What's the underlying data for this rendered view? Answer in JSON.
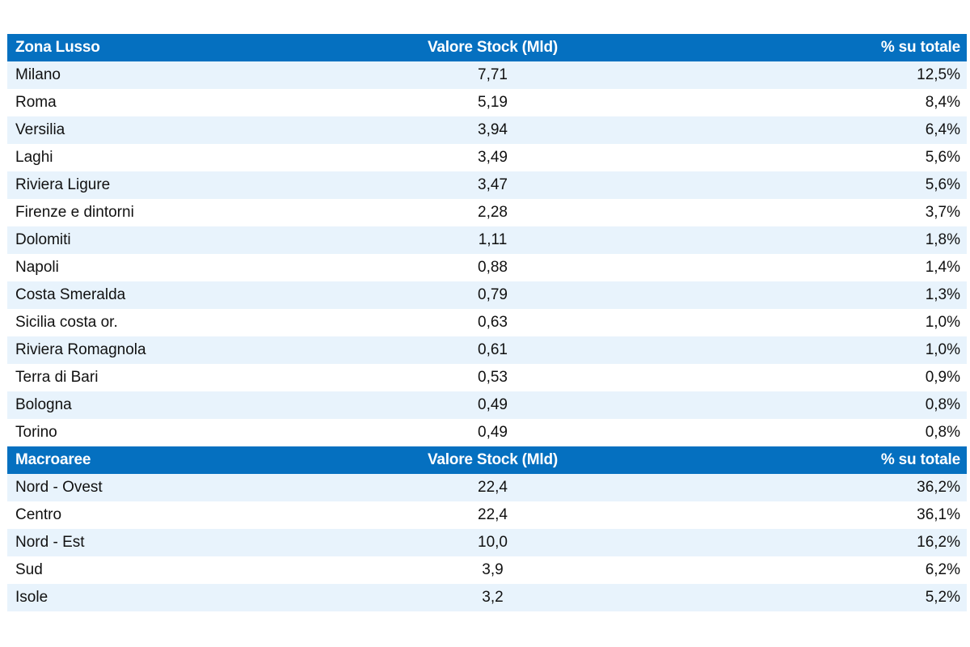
{
  "zone_table": {
    "headers": [
      "Zona Lusso",
      "Valore Stock (Mld)",
      "% su totale"
    ],
    "rows": [
      [
        "Milano",
        "7,71",
        "12,5%"
      ],
      [
        "Roma",
        "5,19",
        "8,4%"
      ],
      [
        "Versilia",
        "3,94",
        "6,4%"
      ],
      [
        "Laghi",
        "3,49",
        "5,6%"
      ],
      [
        "Riviera Ligure",
        "3,47",
        "5,6%"
      ],
      [
        "Firenze e dintorni",
        "2,28",
        "3,7%"
      ],
      [
        "Dolomiti",
        "1,11",
        "1,8%"
      ],
      [
        "Napoli",
        "0,88",
        "1,4%"
      ],
      [
        "Costa Smeralda",
        "0,79",
        "1,3%"
      ],
      [
        "Sicilia costa or.",
        "0,63",
        "1,0%"
      ],
      [
        "Riviera Romagnola",
        "0,61",
        "1,0%"
      ],
      [
        "Terra di Bari",
        "0,53",
        "0,9%"
      ],
      [
        "Bologna",
        "0,49",
        "0,8%"
      ],
      [
        "Torino",
        "0,49",
        "0,8%"
      ]
    ]
  },
  "macro_table": {
    "headers": [
      "Macroaree",
      "Valore Stock (Mld)",
      "% su totale"
    ],
    "rows": [
      [
        "Nord - Ovest",
        "22,4",
        "36,2%"
      ],
      [
        "Centro",
        "22,4",
        "36,1%"
      ],
      [
        "Nord - Est",
        "10,0",
        "16,2%"
      ],
      [
        "Sud",
        "3,9",
        "6,2%"
      ],
      [
        "Isole",
        "3,2",
        "5,2%"
      ]
    ]
  },
  "colors": {
    "header_bg": "#0570c0",
    "row_alt_bg": "#e8f3fc",
    "row_bg": "#ffffff"
  }
}
